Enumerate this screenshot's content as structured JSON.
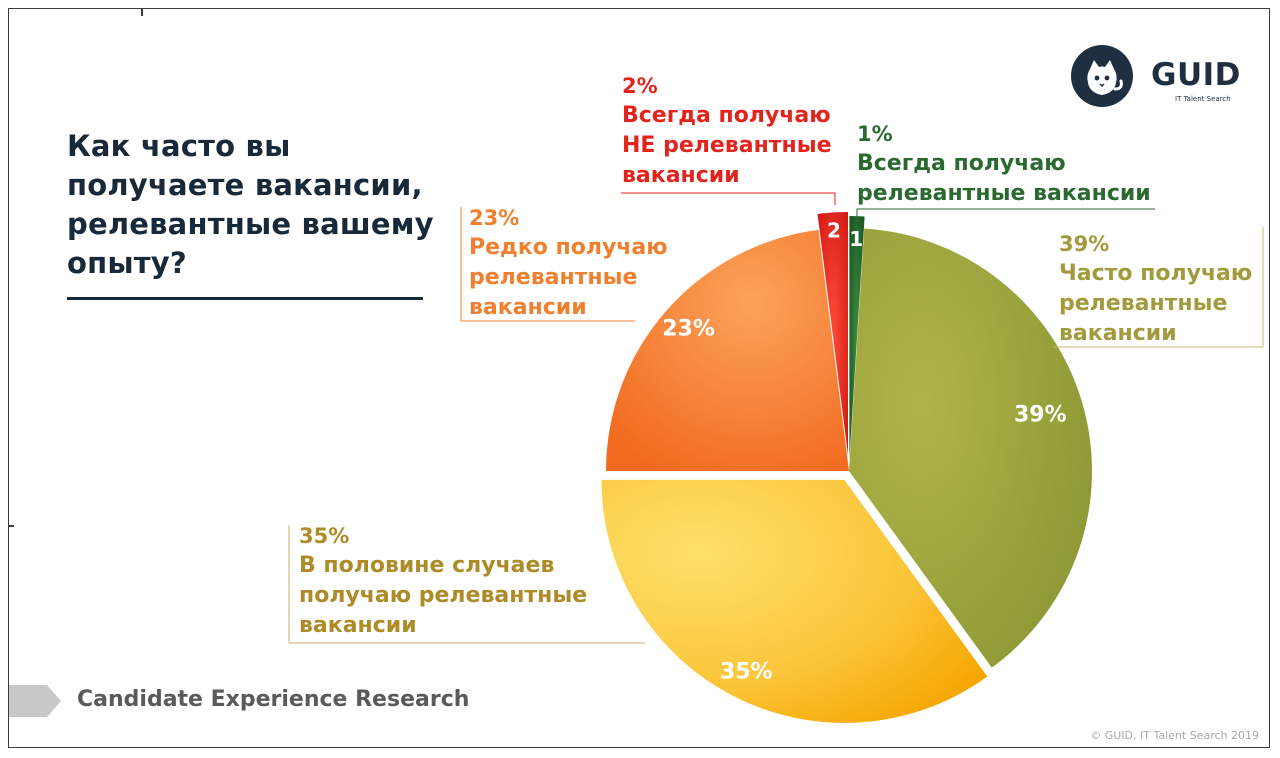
{
  "question": {
    "lines": [
      "Как часто вы",
      "получаете вакансии,",
      "релевантные вашему",
      "опыту?"
    ]
  },
  "brand": {
    "name": "GUID",
    "subtitle": "IT Talent Search",
    "icon": "cat-icon"
  },
  "footer": {
    "title": "Candidate Experience Research",
    "copyright": "© GUID, IT Talent Search 2019"
  },
  "chart_data": {
    "type": "pie",
    "categories": [
      "Всегда получаю релевантные вакансии",
      "Часто получаю релевантные вакансии",
      "В половине случаев получаю релевантные вакансии",
      "Редко получаю релевантные вакансии",
      "Всегда получаю НЕ релевантные вакансии"
    ],
    "values": [
      1,
      39,
      35,
      23,
      2
    ],
    "slice_labels": [
      "1",
      "39%",
      "35%",
      "23%",
      "2"
    ],
    "colors": [
      "#2b6b2f",
      "#9faa3a",
      "#f8c43a",
      "#f57a2a",
      "#e0221a"
    ],
    "callouts": [
      {
        "pct": "1%",
        "lines": [
          "Всегда получаю",
          "релевантные вакансии"
        ]
      },
      {
        "pct": "39%",
        "lines": [
          "Часто получаю",
          "релевантные",
          "вакансии"
        ]
      },
      {
        "pct": "35%",
        "lines": [
          "В половине случаев",
          "получаю релевантные",
          "вакансии"
        ]
      },
      {
        "pct": "23%",
        "lines": [
          "Редко получаю",
          "релевантные",
          "вакансии"
        ]
      },
      {
        "pct": "2%",
        "lines": [
          "Всегда получаю",
          "НЕ релевантные",
          "вакансии"
        ]
      }
    ]
  }
}
